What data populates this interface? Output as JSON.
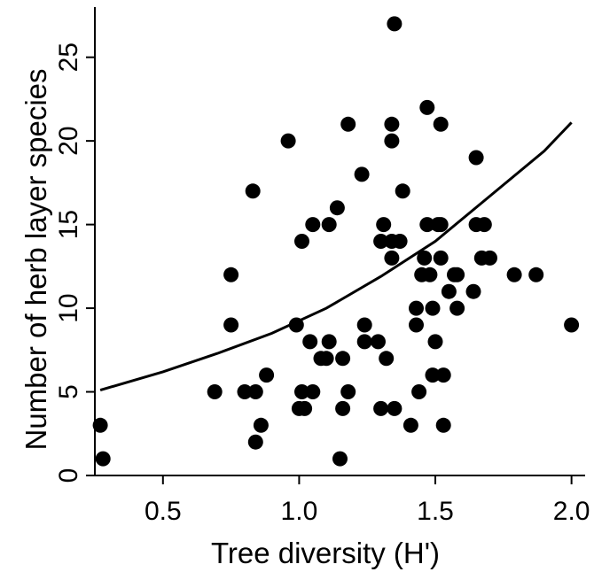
{
  "chart_data": {
    "type": "scatter",
    "title": "",
    "xlabel": "Tree diversity (H')",
    "ylabel": "Number of herb layer species",
    "xlim": [
      0.25,
      2.05
    ],
    "ylim": [
      0,
      28
    ],
    "x_ticks": [
      0.5,
      1.0,
      1.5,
      2.0
    ],
    "x_tick_labels": [
      "0.5",
      "1.0",
      "1.5",
      "2.0"
    ],
    "y_ticks": [
      0,
      5,
      10,
      15,
      20,
      25
    ],
    "y_tick_labels": [
      "0",
      "5",
      "10",
      "15",
      "20",
      "25"
    ],
    "grid": false,
    "legend": "none",
    "colors": {
      "points": "#000000",
      "fit_line": "#000000"
    },
    "points": [
      {
        "x": 0.27,
        "y": 3
      },
      {
        "x": 0.28,
        "y": 1
      },
      {
        "x": 0.69,
        "y": 5
      },
      {
        "x": 0.75,
        "y": 12
      },
      {
        "x": 0.75,
        "y": 9
      },
      {
        "x": 0.8,
        "y": 5
      },
      {
        "x": 0.83,
        "y": 17
      },
      {
        "x": 0.84,
        "y": 5
      },
      {
        "x": 0.84,
        "y": 2
      },
      {
        "x": 0.86,
        "y": 3
      },
      {
        "x": 0.88,
        "y": 6
      },
      {
        "x": 0.96,
        "y": 20
      },
      {
        "x": 0.99,
        "y": 9
      },
      {
        "x": 1.0,
        "y": 4
      },
      {
        "x": 1.01,
        "y": 5
      },
      {
        "x": 1.01,
        "y": 14
      },
      {
        "x": 1.02,
        "y": 4
      },
      {
        "x": 1.04,
        "y": 8
      },
      {
        "x": 1.05,
        "y": 15
      },
      {
        "x": 1.05,
        "y": 5
      },
      {
        "x": 1.08,
        "y": 7
      },
      {
        "x": 1.1,
        "y": 7
      },
      {
        "x": 1.11,
        "y": 8
      },
      {
        "x": 1.11,
        "y": 15
      },
      {
        "x": 1.14,
        "y": 16
      },
      {
        "x": 1.15,
        "y": 1
      },
      {
        "x": 1.16,
        "y": 7
      },
      {
        "x": 1.16,
        "y": 4
      },
      {
        "x": 1.18,
        "y": 21
      },
      {
        "x": 1.18,
        "y": 5
      },
      {
        "x": 1.23,
        "y": 18
      },
      {
        "x": 1.24,
        "y": 9
      },
      {
        "x": 1.24,
        "y": 8
      },
      {
        "x": 1.29,
        "y": 8
      },
      {
        "x": 1.3,
        "y": 14
      },
      {
        "x": 1.3,
        "y": 4
      },
      {
        "x": 1.31,
        "y": 15
      },
      {
        "x": 1.32,
        "y": 7
      },
      {
        "x": 1.34,
        "y": 13
      },
      {
        "x": 1.34,
        "y": 14
      },
      {
        "x": 1.34,
        "y": 21
      },
      {
        "x": 1.34,
        "y": 20
      },
      {
        "x": 1.35,
        "y": 27
      },
      {
        "x": 1.35,
        "y": 4
      },
      {
        "x": 1.37,
        "y": 14
      },
      {
        "x": 1.38,
        "y": 17
      },
      {
        "x": 1.41,
        "y": 3
      },
      {
        "x": 1.43,
        "y": 10
      },
      {
        "x": 1.43,
        "y": 9
      },
      {
        "x": 1.44,
        "y": 5
      },
      {
        "x": 1.45,
        "y": 12
      },
      {
        "x": 1.46,
        "y": 13
      },
      {
        "x": 1.47,
        "y": 15
      },
      {
        "x": 1.47,
        "y": 22
      },
      {
        "x": 1.48,
        "y": 12
      },
      {
        "x": 1.49,
        "y": 10
      },
      {
        "x": 1.49,
        "y": 6
      },
      {
        "x": 1.5,
        "y": 8
      },
      {
        "x": 1.51,
        "y": 15
      },
      {
        "x": 1.52,
        "y": 21
      },
      {
        "x": 1.52,
        "y": 15
      },
      {
        "x": 1.52,
        "y": 13
      },
      {
        "x": 1.53,
        "y": 3
      },
      {
        "x": 1.53,
        "y": 6
      },
      {
        "x": 1.55,
        "y": 11
      },
      {
        "x": 1.57,
        "y": 12
      },
      {
        "x": 1.58,
        "y": 10
      },
      {
        "x": 1.58,
        "y": 12
      },
      {
        "x": 1.64,
        "y": 11
      },
      {
        "x": 1.65,
        "y": 19
      },
      {
        "x": 1.65,
        "y": 15
      },
      {
        "x": 1.67,
        "y": 13
      },
      {
        "x": 1.68,
        "y": 15
      },
      {
        "x": 1.7,
        "y": 13
      },
      {
        "x": 1.79,
        "y": 12
      },
      {
        "x": 1.87,
        "y": 12
      },
      {
        "x": 2.0,
        "y": 9
      }
    ],
    "fit_line": [
      {
        "x": 0.27,
        "y": 5.1
      },
      {
        "x": 0.5,
        "y": 6.2
      },
      {
        "x": 0.7,
        "y": 7.3
      },
      {
        "x": 0.9,
        "y": 8.5
      },
      {
        "x": 1.1,
        "y": 10.0
      },
      {
        "x": 1.3,
        "y": 11.9
      },
      {
        "x": 1.5,
        "y": 14.0
      },
      {
        "x": 1.7,
        "y": 16.7
      },
      {
        "x": 1.9,
        "y": 19.4
      },
      {
        "x": 2.0,
        "y": 21.1
      }
    ]
  }
}
